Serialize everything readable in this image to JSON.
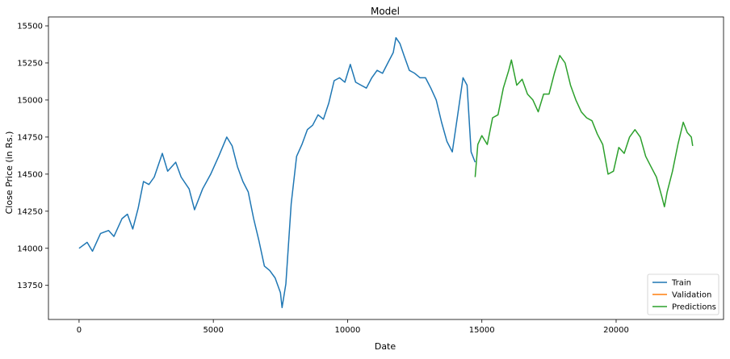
{
  "chart_data": {
    "type": "line",
    "title": "Model",
    "xlabel": "Date",
    "ylabel": "Close Price (in Rs.)",
    "xlim": [
      -1140,
      24000
    ],
    "ylim": [
      13520,
      15560
    ],
    "xticks": [
      0,
      5000,
      10000,
      15000,
      20000
    ],
    "yticks": [
      13750,
      14000,
      14250,
      14500,
      14750,
      15000,
      15250,
      15500
    ],
    "grid": false,
    "legend_position": "lower-right",
    "series": [
      {
        "name": "Train",
        "color": "#1f77b4",
        "points": [
          [
            0,
            14000
          ],
          [
            300,
            14040
          ],
          [
            500,
            13980
          ],
          [
            800,
            14100
          ],
          [
            1100,
            14120
          ],
          [
            1300,
            14080
          ],
          [
            1600,
            14200
          ],
          [
            1800,
            14230
          ],
          [
            2000,
            14130
          ],
          [
            2200,
            14270
          ],
          [
            2400,
            14450
          ],
          [
            2600,
            14430
          ],
          [
            2800,
            14480
          ],
          [
            3100,
            14640
          ],
          [
            3300,
            14520
          ],
          [
            3600,
            14580
          ],
          [
            3800,
            14480
          ],
          [
            4100,
            14400
          ],
          [
            4300,
            14260
          ],
          [
            4600,
            14400
          ],
          [
            4900,
            14500
          ],
          [
            5200,
            14620
          ],
          [
            5500,
            14750
          ],
          [
            5700,
            14690
          ],
          [
            5900,
            14550
          ],
          [
            6100,
            14450
          ],
          [
            6300,
            14380
          ],
          [
            6500,
            14200
          ],
          [
            6700,
            14050
          ],
          [
            6900,
            13880
          ],
          [
            7100,
            13850
          ],
          [
            7300,
            13800
          ],
          [
            7500,
            13700
          ],
          [
            7560,
            13600
          ],
          [
            7700,
            13760
          ],
          [
            7900,
            14300
          ],
          [
            8100,
            14620
          ],
          [
            8300,
            14700
          ],
          [
            8500,
            14800
          ],
          [
            8700,
            14830
          ],
          [
            8900,
            14900
          ],
          [
            9100,
            14870
          ],
          [
            9300,
            14980
          ],
          [
            9500,
            15130
          ],
          [
            9700,
            15150
          ],
          [
            9900,
            15120
          ],
          [
            10100,
            15240
          ],
          [
            10300,
            15120
          ],
          [
            10500,
            15100
          ],
          [
            10700,
            15080
          ],
          [
            10900,
            15150
          ],
          [
            11100,
            15200
          ],
          [
            11300,
            15180
          ],
          [
            11500,
            15250
          ],
          [
            11700,
            15320
          ],
          [
            11800,
            15420
          ],
          [
            11950,
            15380
          ],
          [
            12100,
            15300
          ],
          [
            12300,
            15200
          ],
          [
            12500,
            15180
          ],
          [
            12700,
            15150
          ],
          [
            12900,
            15150
          ],
          [
            13100,
            15080
          ],
          [
            13300,
            15000
          ],
          [
            13500,
            14850
          ],
          [
            13700,
            14720
          ],
          [
            13900,
            14650
          ],
          [
            14100,
            14900
          ],
          [
            14300,
            15150
          ],
          [
            14450,
            15100
          ],
          [
            14600,
            14650
          ],
          [
            14750,
            14580
          ]
        ]
      },
      {
        "name": "Validation",
        "color": "#ff7f0e",
        "points": []
      },
      {
        "name": "Predictions",
        "color": "#2ca02c",
        "points": [
          [
            14750,
            14480
          ],
          [
            14850,
            14700
          ],
          [
            15000,
            14760
          ],
          [
            15200,
            14700
          ],
          [
            15400,
            14880
          ],
          [
            15600,
            14900
          ],
          [
            15800,
            15080
          ],
          [
            16000,
            15200
          ],
          [
            16100,
            15270
          ],
          [
            16300,
            15100
          ],
          [
            16500,
            15140
          ],
          [
            16700,
            15040
          ],
          [
            16900,
            15000
          ],
          [
            17100,
            14920
          ],
          [
            17300,
            15040
          ],
          [
            17500,
            15040
          ],
          [
            17700,
            15180
          ],
          [
            17900,
            15300
          ],
          [
            18100,
            15250
          ],
          [
            18300,
            15100
          ],
          [
            18500,
            15000
          ],
          [
            18700,
            14920
          ],
          [
            18900,
            14880
          ],
          [
            19100,
            14860
          ],
          [
            19300,
            14770
          ],
          [
            19500,
            14700
          ],
          [
            19700,
            14500
          ],
          [
            19900,
            14520
          ],
          [
            20100,
            14680
          ],
          [
            20300,
            14640
          ],
          [
            20500,
            14750
          ],
          [
            20700,
            14800
          ],
          [
            20900,
            14750
          ],
          [
            21100,
            14620
          ],
          [
            21300,
            14550
          ],
          [
            21500,
            14480
          ],
          [
            21700,
            14350
          ],
          [
            21800,
            14280
          ],
          [
            21900,
            14380
          ],
          [
            22100,
            14520
          ],
          [
            22300,
            14700
          ],
          [
            22500,
            14850
          ],
          [
            22650,
            14780
          ],
          [
            22800,
            14750
          ],
          [
            22850,
            14690
          ]
        ]
      }
    ]
  }
}
